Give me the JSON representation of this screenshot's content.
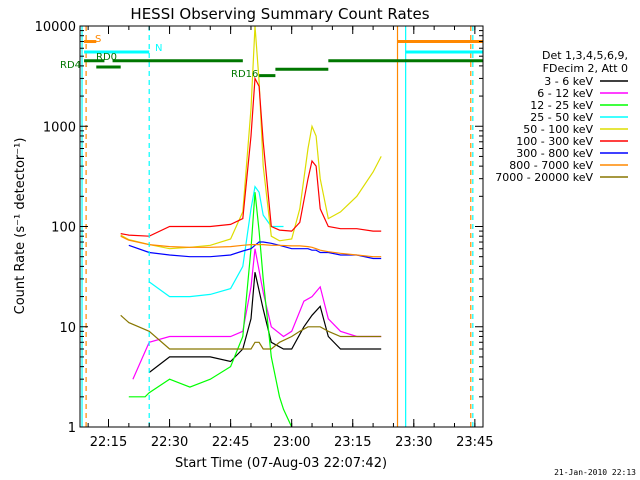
{
  "chart_data": {
    "type": "line",
    "title": "HESSI Observing Summary Count Rates",
    "xlabel": "Start Time (07-Aug-03 22:07:42)",
    "ylabel": "Count Rate (s⁻¹ detector⁻¹)",
    "yscale": "log",
    "ylim": [
      1,
      10000
    ],
    "xlim": [
      "22:08:00",
      "23:47:00"
    ],
    "x_ticks": [
      "22:15",
      "22:30",
      "22:45",
      "23:00",
      "23:15",
      "23:30",
      "23:45"
    ],
    "y_ticks": [
      "1",
      "10",
      "100",
      "1000",
      "10000"
    ],
    "legend_title": [
      "Det 1,3,4,5,6,9,",
      "FDecim 2, Att 0"
    ],
    "legend_position": "right",
    "footer_date": "21-Jan-2010 22:13",
    "series": [
      {
        "name": "3 - 6 keV",
        "color": "#000000",
        "x": [
          "22:12",
          "22:20",
          "22:21",
          "22:25",
          "22:30",
          "22:40",
          "22:45",
          "22:48",
          "22:50",
          "22:51",
          "22:53",
          "22:55",
          "22:58",
          "23:00",
          "23:03",
          "23:05",
          "23:07",
          "23:09",
          "23:12",
          "23:16",
          "23:20",
          "23:22"
        ],
        "y": [
          null,
          null,
          null,
          3.5,
          5,
          5,
          4.5,
          6,
          12,
          35,
          15,
          7,
          6,
          6,
          10,
          13,
          16,
          8,
          6,
          6,
          6,
          6
        ]
      },
      {
        "name": "6 - 12 keV",
        "color": "#ff00ff",
        "x": [
          "22:12",
          "22:20",
          "22:21",
          "22:25",
          "22:30",
          "22:40",
          "22:45",
          "22:48",
          "22:50",
          "22:51",
          "22:53",
          "22:55",
          "22:58",
          "23:00",
          "23:03",
          "23:05",
          "23:07",
          "23:09",
          "23:12",
          "23:16",
          "23:20",
          "23:22"
        ],
        "y": [
          null,
          null,
          3,
          7,
          8,
          8,
          8,
          9,
          25,
          60,
          22,
          10,
          8,
          9,
          18,
          20,
          25,
          12,
          9,
          8,
          8,
          8
        ]
      },
      {
        "name": "12 - 25 keV",
        "color": "#00ff00",
        "x": [
          "22:12",
          "22:14",
          "22:18",
          "22:20",
          "22:22",
          "22:24",
          "22:25",
          "22:30",
          "22:35",
          "22:40",
          "22:45",
          "22:48",
          "22:50",
          "22:51",
          "22:52",
          "22:53",
          "22:55",
          "22:57",
          "22:58",
          "23:00"
        ],
        "y": [
          null,
          null,
          null,
          2,
          2,
          2,
          2.2,
          3,
          2.5,
          3,
          4,
          8,
          60,
          220,
          90,
          30,
          5,
          2,
          1.5,
          1
        ]
      },
      {
        "name": "25 - 50 keV",
        "color": "#00ffff",
        "x": [
          "22:12",
          "22:14",
          "22:18",
          "22:20",
          "22:22",
          "22:24",
          "22:25",
          "22:30",
          "22:35",
          "22:40",
          "22:45",
          "22:48",
          "22:50",
          "22:51",
          "22:52",
          "22:53",
          "22:55",
          "22:57",
          "22:58"
        ],
        "y": [
          null,
          null,
          null,
          null,
          null,
          null,
          28,
          20,
          20,
          21,
          24,
          40,
          150,
          250,
          220,
          130,
          100,
          100,
          100
        ]
      },
      {
        "name": "50 - 100 keV",
        "color": "#dddd00",
        "x": [
          "22:12",
          "22:14",
          "22:17",
          "22:18",
          "22:20",
          "22:25",
          "22:30",
          "22:35",
          "22:40",
          "22:45",
          "22:48",
          "22:50",
          "22:51",
          "22:52",
          "22:53",
          "22:55",
          "22:57",
          "23:00",
          "23:02",
          "23:04",
          "23:05",
          "23:06",
          "23:07",
          "23:09",
          "23:12",
          "23:16",
          "23:20",
          "23:22"
        ],
        "y": [
          null,
          null,
          null,
          82,
          74,
          66,
          60,
          62,
          65,
          75,
          140,
          1500,
          10000,
          2800,
          400,
          80,
          72,
          75,
          150,
          600,
          1000,
          800,
          300,
          120,
          140,
          200,
          350,
          500
        ]
      },
      {
        "name": "100 - 300 keV",
        "color": "#ff0000",
        "x": [
          "22:12",
          "22:14",
          "22:17",
          "22:18",
          "22:20",
          "22:25",
          "22:30",
          "22:35",
          "22:40",
          "22:45",
          "22:48",
          "22:50",
          "22:51",
          "22:52",
          "22:53",
          "22:55",
          "22:57",
          "23:00",
          "23:02",
          "23:04",
          "23:05",
          "23:06",
          "23:07",
          "23:09",
          "23:12",
          "23:16",
          "23:20",
          "23:22"
        ],
        "y": [
          null,
          null,
          null,
          85,
          82,
          80,
          100,
          100,
          100,
          105,
          120,
          800,
          3000,
          2500,
          700,
          100,
          92,
          90,
          110,
          300,
          450,
          400,
          150,
          100,
          95,
          95,
          90,
          90
        ]
      },
      {
        "name": "300 - 800 keV",
        "color": "#0000ff",
        "x": [
          "22:12",
          "22:14",
          "22:17",
          "22:18",
          "22:20",
          "22:25",
          "22:30",
          "22:35",
          "22:40",
          "22:45",
          "22:48",
          "22:50",
          "22:51",
          "22:52",
          "22:53",
          "22:55",
          "22:57",
          "23:00",
          "23:02",
          "23:04",
          "23:05",
          "23:06",
          "23:07",
          "23:09",
          "23:12",
          "23:16",
          "23:20",
          "23:22"
        ],
        "y": [
          null,
          null,
          null,
          null,
          65,
          55,
          52,
          50,
          50,
          52,
          57,
          60,
          65,
          70,
          70,
          68,
          65,
          60,
          60,
          60,
          58,
          58,
          55,
          55,
          52,
          52,
          48,
          48
        ]
      },
      {
        "name": "800 - 7000 keV",
        "color": "#ff8800",
        "x": [
          "22:12",
          "22:14",
          "22:17",
          "22:18",
          "22:20",
          "22:25",
          "22:30",
          "22:35",
          "22:40",
          "22:45",
          "22:48",
          "22:50",
          "22:51",
          "22:52",
          "22:53",
          "22:55",
          "22:57",
          "23:00",
          "23:02",
          "23:04",
          "23:05",
          "23:06",
          "23:07",
          "23:09",
          "23:12",
          "23:16",
          "23:20",
          "23:22"
        ],
        "y": [
          null,
          null,
          null,
          80,
          73,
          66,
          63,
          62,
          62,
          63,
          65,
          66,
          66,
          66,
          66,
          65,
          65,
          64,
          64,
          63,
          62,
          60,
          58,
          56,
          54,
          52,
          50,
          50
        ]
      },
      {
        "name": "7000 - 20000 keV",
        "color": "#887700",
        "x": [
          "22:12",
          "22:14",
          "22:17",
          "22:18",
          "22:20",
          "22:25",
          "22:30",
          "22:35",
          "22:40",
          "22:45",
          "22:48",
          "22:50",
          "22:51",
          "22:52",
          "22:53",
          "22:55",
          "22:57",
          "23:00",
          "23:02",
          "23:04",
          "23:05",
          "23:06",
          "23:07",
          "23:09",
          "23:12",
          "23:16",
          "23:20",
          "23:22"
        ],
        "y": [
          null,
          null,
          null,
          13,
          11,
          9,
          6,
          6,
          6,
          6,
          6,
          6,
          7,
          7,
          6,
          6,
          7,
          8,
          9,
          10,
          10,
          10,
          10,
          9,
          8,
          8,
          8,
          8
        ]
      }
    ],
    "state_bars": [
      {
        "label": "S",
        "color": "#ff8800",
        "y": 7000,
        "segments": [
          [
            "22:09",
            "22:12"
          ],
          [
            "23:26",
            "23:47"
          ]
        ]
      },
      {
        "label": "N",
        "color": "#00ffff",
        "y": 5500,
        "segments": [
          [
            "22:09",
            "22:25"
          ],
          [
            "23:28",
            "23:47"
          ]
        ]
      },
      {
        "label": "RD0",
        "color": "#007700",
        "y": 4500,
        "segments": [
          [
            "22:09",
            "22:14"
          ],
          [
            "22:16",
            "22:48"
          ],
          [
            "23:09",
            "23:47"
          ]
        ]
      },
      {
        "label": "RD4",
        "color": "#007700",
        "y": 3900,
        "segments": [
          [
            "22:12",
            "22:18"
          ]
        ]
      },
      {
        "label": "RD16",
        "color": "#007700",
        "y": 3200,
        "segments": [
          [
            "22:52",
            "22:56"
          ]
        ]
      },
      {
        "label": "",
        "color": "#007700",
        "y": 3700,
        "segments": [
          [
            "22:56",
            "23:09"
          ]
        ]
      }
    ],
    "vlines": [
      {
        "x": "22:08:30",
        "color": "#00ffff",
        "style": "solid"
      },
      {
        "x": "22:09:30",
        "color": "#ff8800",
        "style": "dashed"
      },
      {
        "x": "22:25:00",
        "color": "#00ffff",
        "style": "dashed"
      },
      {
        "x": "23:26:00",
        "color": "#ff8800",
        "style": "solid"
      },
      {
        "x": "23:28:00",
        "color": "#00ffff",
        "style": "solid"
      },
      {
        "x": "23:44:00",
        "color": "#ff8800",
        "style": "dashed"
      },
      {
        "x": "23:44:30",
        "color": "#00ffff",
        "style": "dashed"
      }
    ]
  }
}
